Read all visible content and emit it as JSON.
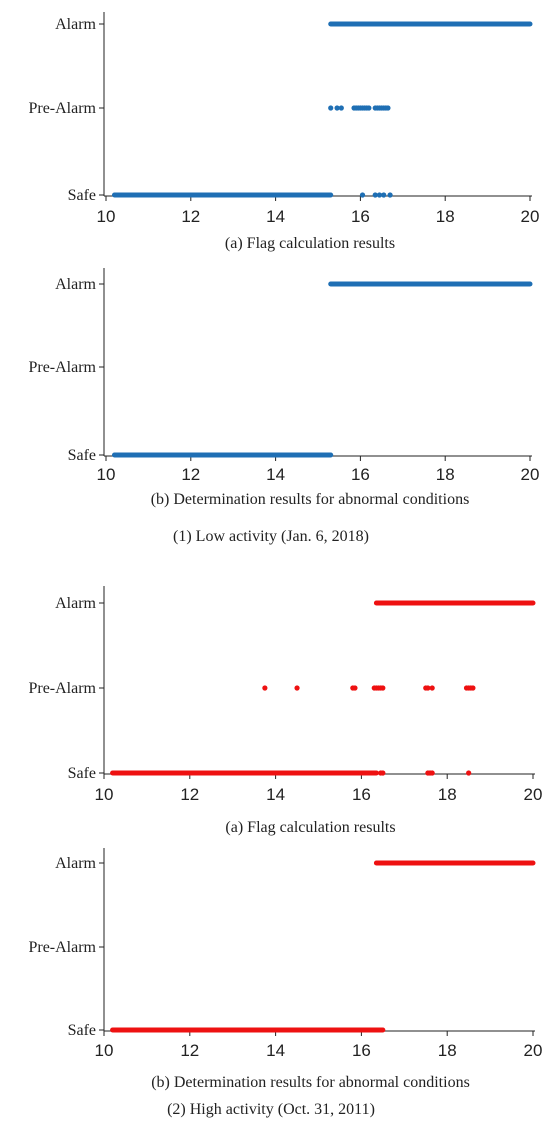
{
  "chart_data": [
    {
      "type": "scatter",
      "subcaption": "(a) Flag calculation results",
      "color": "#1f6fb4",
      "xlim": [
        10,
        20
      ],
      "xticks": [
        "10",
        "12",
        "14",
        "16",
        "18",
        "20"
      ],
      "ylevels": [
        "Safe",
        "Pre-Alarm",
        "Alarm"
      ],
      "segments": [
        {
          "level": 0,
          "x": [
            10.2,
            15.3
          ]
        },
        {
          "level": 2,
          "x": [
            15.3,
            20.0
          ]
        }
      ],
      "points": [
        {
          "level": 1,
          "x": [
            15.3,
            15.45,
            15.55,
            15.85,
            15.9,
            15.95,
            16.0,
            16.05,
            16.1,
            16.15,
            16.2,
            16.35,
            16.4,
            16.45,
            16.5,
            16.55,
            16.6,
            16.65
          ]
        },
        {
          "level": 0,
          "x": [
            16.05,
            16.35,
            16.45,
            16.55,
            16.7
          ]
        }
      ]
    },
    {
      "type": "scatter",
      "subcaption": "(b) Determination results for abnormal conditions",
      "color": "#1f6fb4",
      "xlim": [
        10,
        20
      ],
      "xticks": [
        "10",
        "12",
        "14",
        "16",
        "18",
        "20"
      ],
      "ylevels": [
        "Safe",
        "Pre-Alarm",
        "Alarm"
      ],
      "segments": [
        {
          "level": 0,
          "x": [
            10.2,
            15.3
          ]
        },
        {
          "level": 2,
          "x": [
            15.3,
            20.0
          ]
        }
      ],
      "points": []
    },
    {
      "type": "scatter",
      "subcaption": "(a) Flag calculation results",
      "color": "#ee1111",
      "xlim": [
        10,
        20
      ],
      "xticks": [
        "10",
        "12",
        "14",
        "16",
        "18",
        "20"
      ],
      "ylevels": [
        "Safe",
        "Pre-Alarm",
        "Alarm"
      ],
      "segments": [
        {
          "level": 0,
          "x": [
            10.2,
            16.35
          ]
        },
        {
          "level": 2,
          "x": [
            16.35,
            20.0
          ]
        }
      ],
      "points": [
        {
          "level": 1,
          "x": [
            13.75,
            14.5,
            15.8,
            15.85,
            16.3,
            16.35,
            16.4,
            16.45,
            16.5,
            17.5,
            17.55,
            17.65,
            18.45,
            18.5,
            18.55,
            18.6
          ]
        },
        {
          "level": 0,
          "x": [
            16.45,
            16.5,
            17.55,
            17.6,
            17.65,
            18.5
          ]
        }
      ]
    },
    {
      "type": "scatter",
      "subcaption": "(b) Determination results for abnormal conditions",
      "color": "#ee1111",
      "xlim": [
        10,
        20
      ],
      "xticks": [
        "10",
        "12",
        "14",
        "16",
        "18",
        "20"
      ],
      "ylevels": [
        "Safe",
        "Pre-Alarm",
        "Alarm"
      ],
      "segments": [
        {
          "level": 0,
          "x": [
            10.2,
            16.5
          ]
        },
        {
          "level": 2,
          "x": [
            16.35,
            20.0
          ]
        }
      ],
      "points": []
    }
  ],
  "captions": [
    "(1) Low activity (Jan. 6, 2018)",
    "(2) High activity (Oct. 31, 2011)"
  ]
}
